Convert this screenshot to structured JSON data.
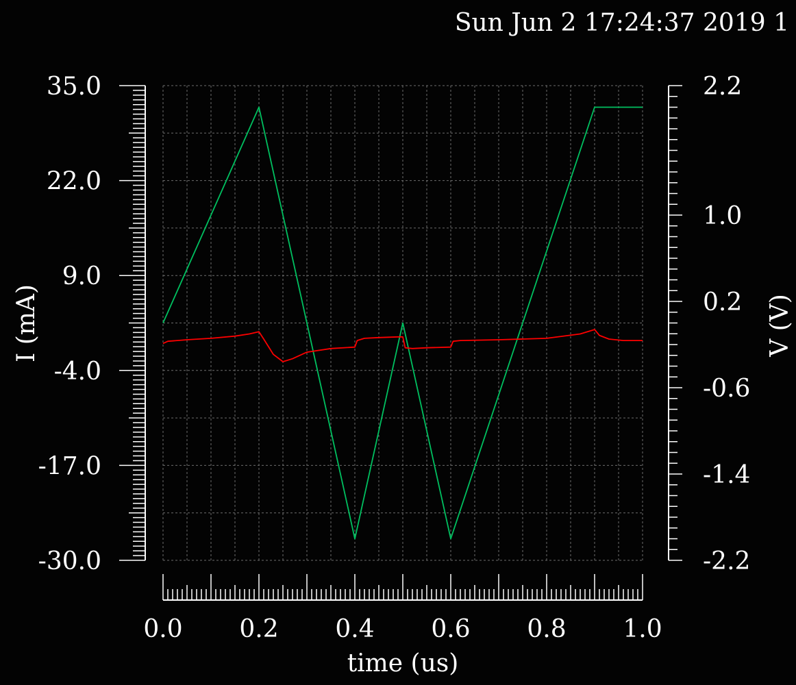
{
  "timestamp": "Sun Jun 2 17:24:37 2019 1",
  "colors": {
    "background": "#030303",
    "axis": "#ffffff",
    "grid": "#6e6e6e",
    "current_trace": "#ff0000",
    "voltage_trace": "#00c060"
  },
  "chart_data": {
    "type": "line",
    "xlabel": "time (us)",
    "ylabel_left": "I (mA)",
    "ylabel_right": "V (V)",
    "xlim": [
      0.0,
      1.0
    ],
    "ylim_left": [
      -30.0,
      35.0
    ],
    "ylim_right": [
      -2.2,
      2.2
    ],
    "x_ticks": [
      "0.0",
      "0.2",
      "0.4",
      "0.6",
      "0.8",
      "1.0"
    ],
    "y_ticks_left": [
      "35.0",
      "22.0",
      "9.0",
      "-4.0",
      "-17.0",
      "-30.0"
    ],
    "y_ticks_right": [
      "2.2",
      "1.0",
      "0.2",
      "-0.6",
      "-1.4",
      "-2.2"
    ],
    "grid": true,
    "series": [
      {
        "axis": "right",
        "color": "#00c060",
        "x": [
          0.0,
          0.2,
          0.4,
          0.5,
          0.6,
          0.9,
          1.0
        ],
        "y": [
          0.0,
          2.0,
          -2.0,
          0.0,
          -2.0,
          2.0,
          2.0
        ]
      },
      {
        "axis": "left",
        "color": "#ff0000",
        "x": [
          0.0,
          0.01,
          0.05,
          0.1,
          0.15,
          0.18,
          0.2,
          0.21,
          0.23,
          0.25,
          0.27,
          0.3,
          0.35,
          0.4,
          0.405,
          0.42,
          0.45,
          0.49,
          0.5,
          0.505,
          0.52,
          0.55,
          0.6,
          0.605,
          0.62,
          0.7,
          0.8,
          0.87,
          0.9,
          0.91,
          0.93,
          0.96,
          1.0
        ],
        "y": [
          -0.3,
          0.0,
          0.2,
          0.4,
          0.7,
          1.0,
          1.3,
          0.3,
          -1.8,
          -2.8,
          -2.4,
          -1.5,
          -1.0,
          -0.8,
          0.1,
          0.4,
          0.5,
          0.6,
          0.6,
          -0.9,
          -1.0,
          -0.9,
          -0.8,
          0.0,
          0.1,
          0.2,
          0.4,
          1.0,
          1.6,
          0.8,
          0.3,
          0.1,
          0.1
        ]
      }
    ]
  }
}
